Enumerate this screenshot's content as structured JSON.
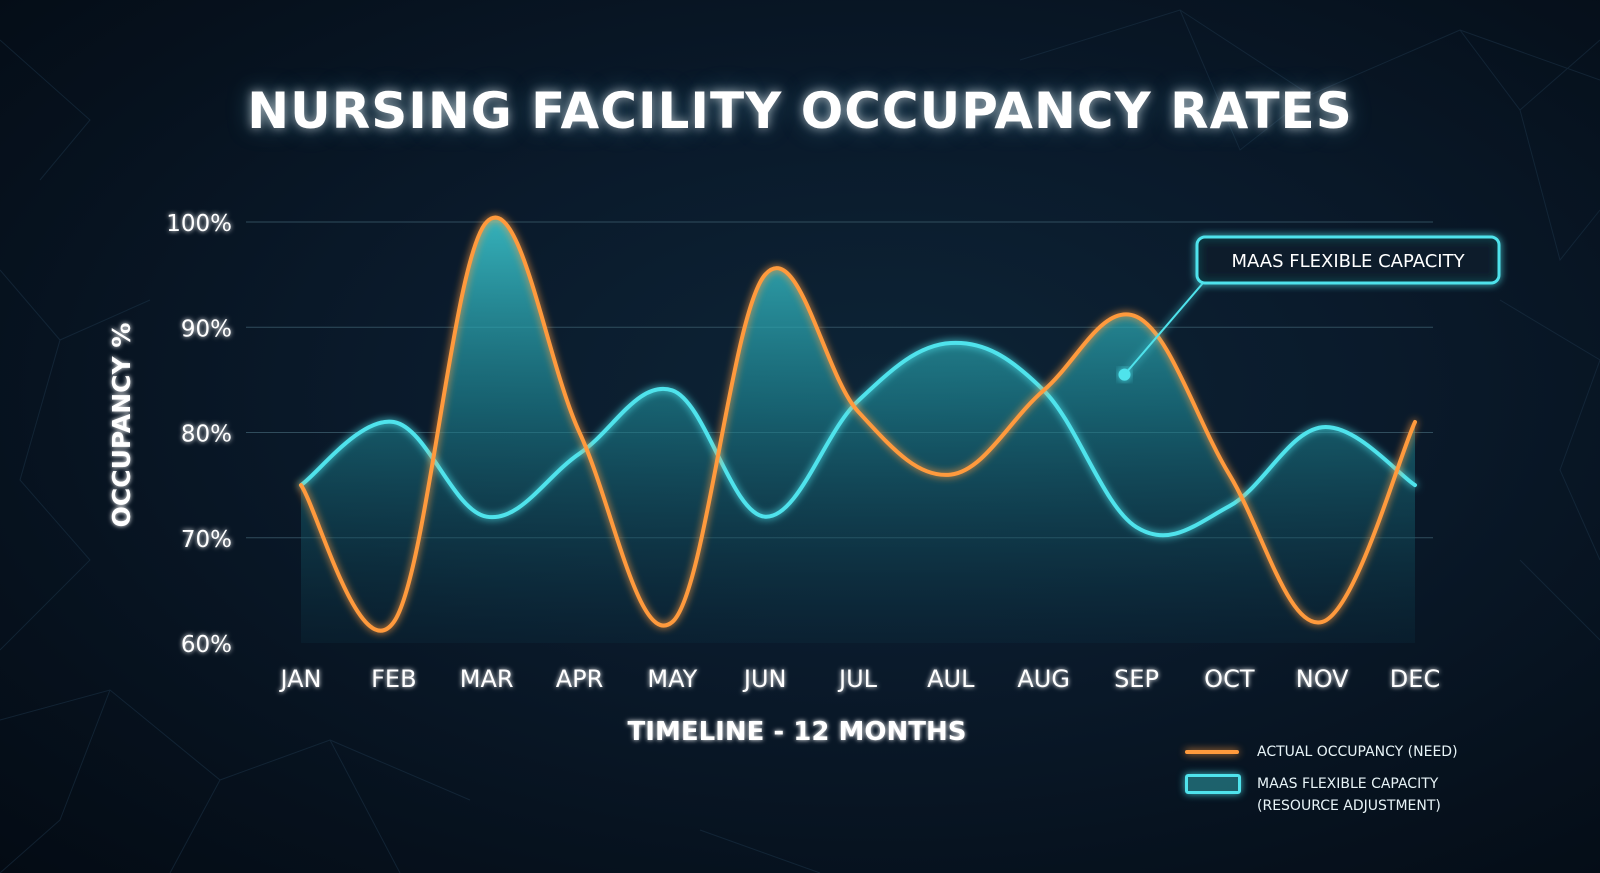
{
  "colors": {
    "background": "#071524",
    "actual_line": "#ff9a3c",
    "capacity_line": "#4fe3ec",
    "axis": "#3fe0ea",
    "grid": "#3a5a6a",
    "text": "#ffffff"
  },
  "chart_data": {
    "type": "line",
    "title": "NURSING FACILITY OCCUPANCY RATES",
    "xlabel": "TIMELINE - 12 MONTHS",
    "ylabel": "OCCUPANCY %",
    "categories": [
      "JAN",
      "FEB",
      "MAR",
      "APR",
      "MAY",
      "JUN",
      "JUL",
      "AUL",
      "AUG",
      "SEP",
      "OCT",
      "NOV",
      "DEC"
    ],
    "ylim": [
      60,
      100
    ],
    "yticks": [
      60,
      70,
      80,
      90,
      100
    ],
    "ytick_labels": [
      "60%",
      "70%",
      "80%",
      "90%",
      "100%"
    ],
    "grid": true,
    "series": [
      {
        "name": "ACTUAL OCCUPANCY (NEED)",
        "style": "line",
        "color": "#ff9a3c",
        "values": [
          75,
          62,
          100,
          80,
          62,
          95,
          82,
          76,
          84,
          91,
          76,
          62,
          81
        ]
      },
      {
        "name": "MAAS FLEXIBLE CAPACITY (RESOURCE ADJUSTMENT)",
        "style": "area",
        "color": "#4fe3ec",
        "values": [
          75,
          81,
          72,
          78,
          84,
          72,
          83,
          88.5,
          84,
          71,
          73,
          80.5,
          75
        ]
      }
    ],
    "annotation": {
      "text": "MAAS FLEXIBLE CAPACITY",
      "point": {
        "x": "SEP",
        "y": 85.5
      }
    },
    "legend": {
      "placement": "bottom-right",
      "entries": [
        {
          "label": "ACTUAL OCCUPANCY (NEED)",
          "swatch": "line"
        },
        {
          "label_line1": "MAAS FLEXIBLE CAPACITY",
          "label_line2": "(RESOURCE ADJUSTMENT)",
          "swatch": "area"
        }
      ]
    }
  }
}
